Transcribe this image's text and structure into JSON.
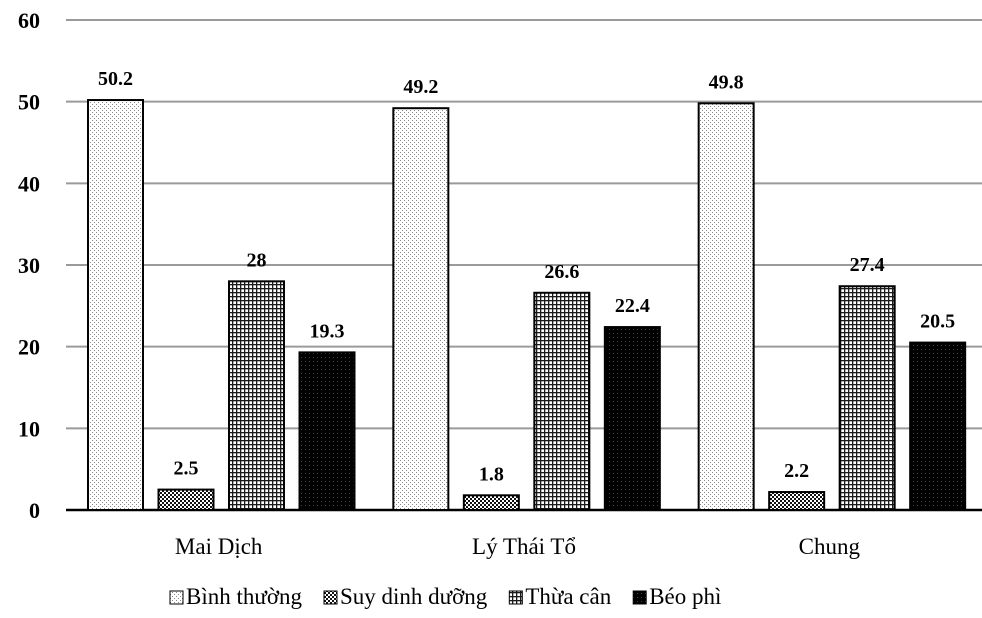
{
  "chart_data": {
    "type": "bar",
    "title": "",
    "xlabel": "",
    "ylabel": "",
    "ylim": [
      0,
      60
    ],
    "yticks": [
      0,
      10,
      20,
      30,
      40,
      50,
      60
    ],
    "grid": true,
    "legend_position": "bottom",
    "categories": [
      "Mai Dịch",
      "Lý Thái Tổ",
      "Chung"
    ],
    "series": [
      {
        "name": "Bình thường",
        "pattern": "dots-light",
        "values": [
          50.2,
          49.2,
          49.8
        ]
      },
      {
        "name": "Suy dinh dưỡng",
        "pattern": "checker",
        "values": [
          2.5,
          1.8,
          2.2
        ]
      },
      {
        "name": "Thừa cân",
        "pattern": "grid",
        "values": [
          28,
          26.6,
          27.4
        ]
      },
      {
        "name": "Béo phì",
        "pattern": "solid-dark",
        "values": [
          19.3,
          22.4,
          20.5
        ]
      }
    ],
    "data_labels": [
      [
        "50.2",
        "2.5",
        "28",
        "19.3"
      ],
      [
        "49.2",
        "1.8",
        "26.6",
        "22.4"
      ],
      [
        "49.8",
        "2.2",
        "27.4",
        "20.5"
      ]
    ]
  }
}
